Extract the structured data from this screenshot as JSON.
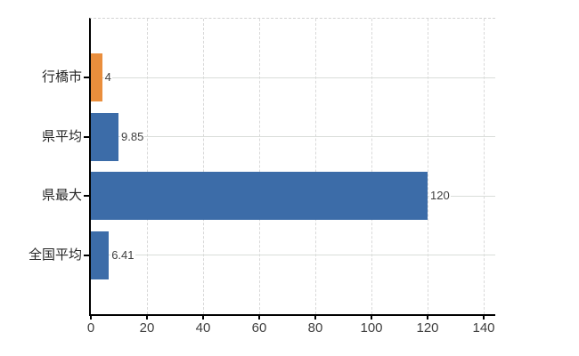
{
  "chart_data": {
    "type": "bar",
    "orientation": "horizontal",
    "title": "",
    "xlabel": "",
    "ylabel": "",
    "categories": [
      "行橋市",
      "県平均",
      "県最大",
      "全国平均"
    ],
    "values": [
      4,
      9.85,
      120,
      6.41
    ],
    "value_labels": [
      "4",
      "9.85",
      "120",
      "6.41"
    ],
    "bar_colors": [
      "#ea8e3c",
      "#3c6ca8",
      "#3c6ca8",
      "#3c6ca8"
    ],
    "xlim": [
      0,
      140
    ],
    "xticks": [
      0,
      20,
      40,
      60,
      80,
      100,
      120,
      140
    ],
    "grid": true,
    "legend": null
  },
  "colors": {
    "background": "#ffffff",
    "axis": "#000000",
    "gridline": "#d9d9d9",
    "tick_label": "#3f3f3f",
    "category_label": "#262626",
    "value_label": "#404040",
    "orange_bar": "#ea8e3c",
    "blue_bar": "#3c6ca8"
  }
}
